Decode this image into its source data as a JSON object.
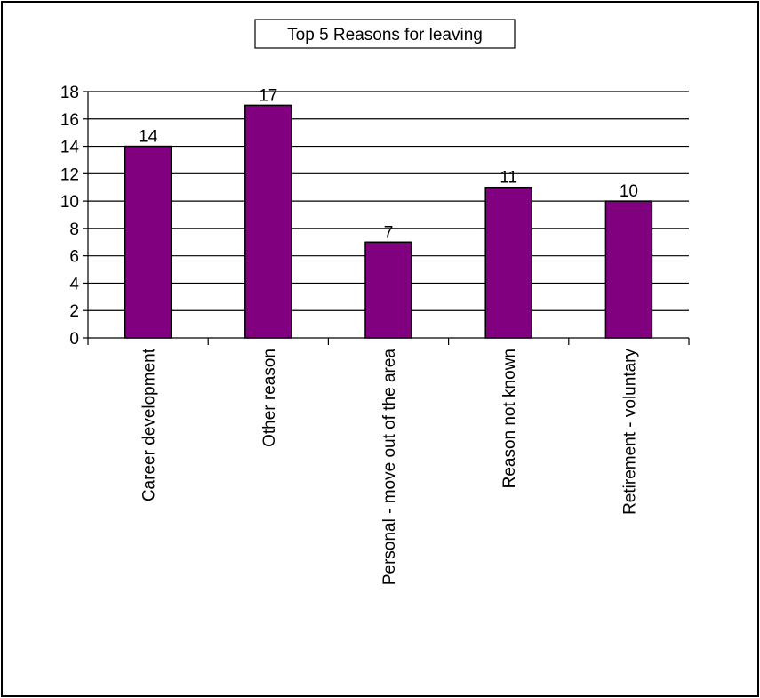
{
  "chart_data": {
    "type": "bar",
    "title": "Top 5 Reasons for leaving",
    "categories": [
      "Career development",
      "Other reason",
      "Personal - move out of the area",
      "Reason not known",
      "Retirement - voluntary"
    ],
    "values": [
      14,
      17,
      7,
      11,
      10
    ],
    "ylim": [
      0,
      18
    ],
    "yticks": [
      "0",
      "2",
      "4",
      "6",
      "8",
      "10",
      "12",
      "14",
      "16",
      "18"
    ],
    "xlabel": "",
    "ylabel": "",
    "grid": true,
    "legend": "none",
    "data_labels": true
  },
  "colors": {
    "bar_fill": "#800080",
    "bar_stroke": "#000000",
    "gridline": "#000000",
    "background": "#ffffff"
  }
}
